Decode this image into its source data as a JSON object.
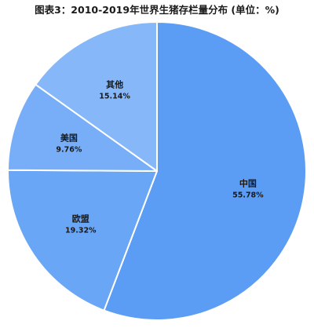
{
  "chart_data": {
    "type": "pie",
    "title": "图表3：2010-2019年世界生猪存栏量分布 (单位：%)",
    "start_angle_deg": 0,
    "direction": "clockwise",
    "slices": [
      {
        "label": "中国",
        "value": 55.78,
        "value_label": "55.78%",
        "color": "#5b9cf4"
      },
      {
        "label": "欧盟",
        "value": 19.32,
        "value_label": "19.32%",
        "color": "#6aa6f6"
      },
      {
        "label": "美国",
        "value": 9.76,
        "value_label": "9.76%",
        "color": "#77aef7"
      },
      {
        "label": "其他",
        "value": 15.14,
        "value_label": "15.14%",
        "color": "#86b8f9"
      }
    ],
    "legend": "none",
    "slice_border_color": "#ffffff"
  }
}
